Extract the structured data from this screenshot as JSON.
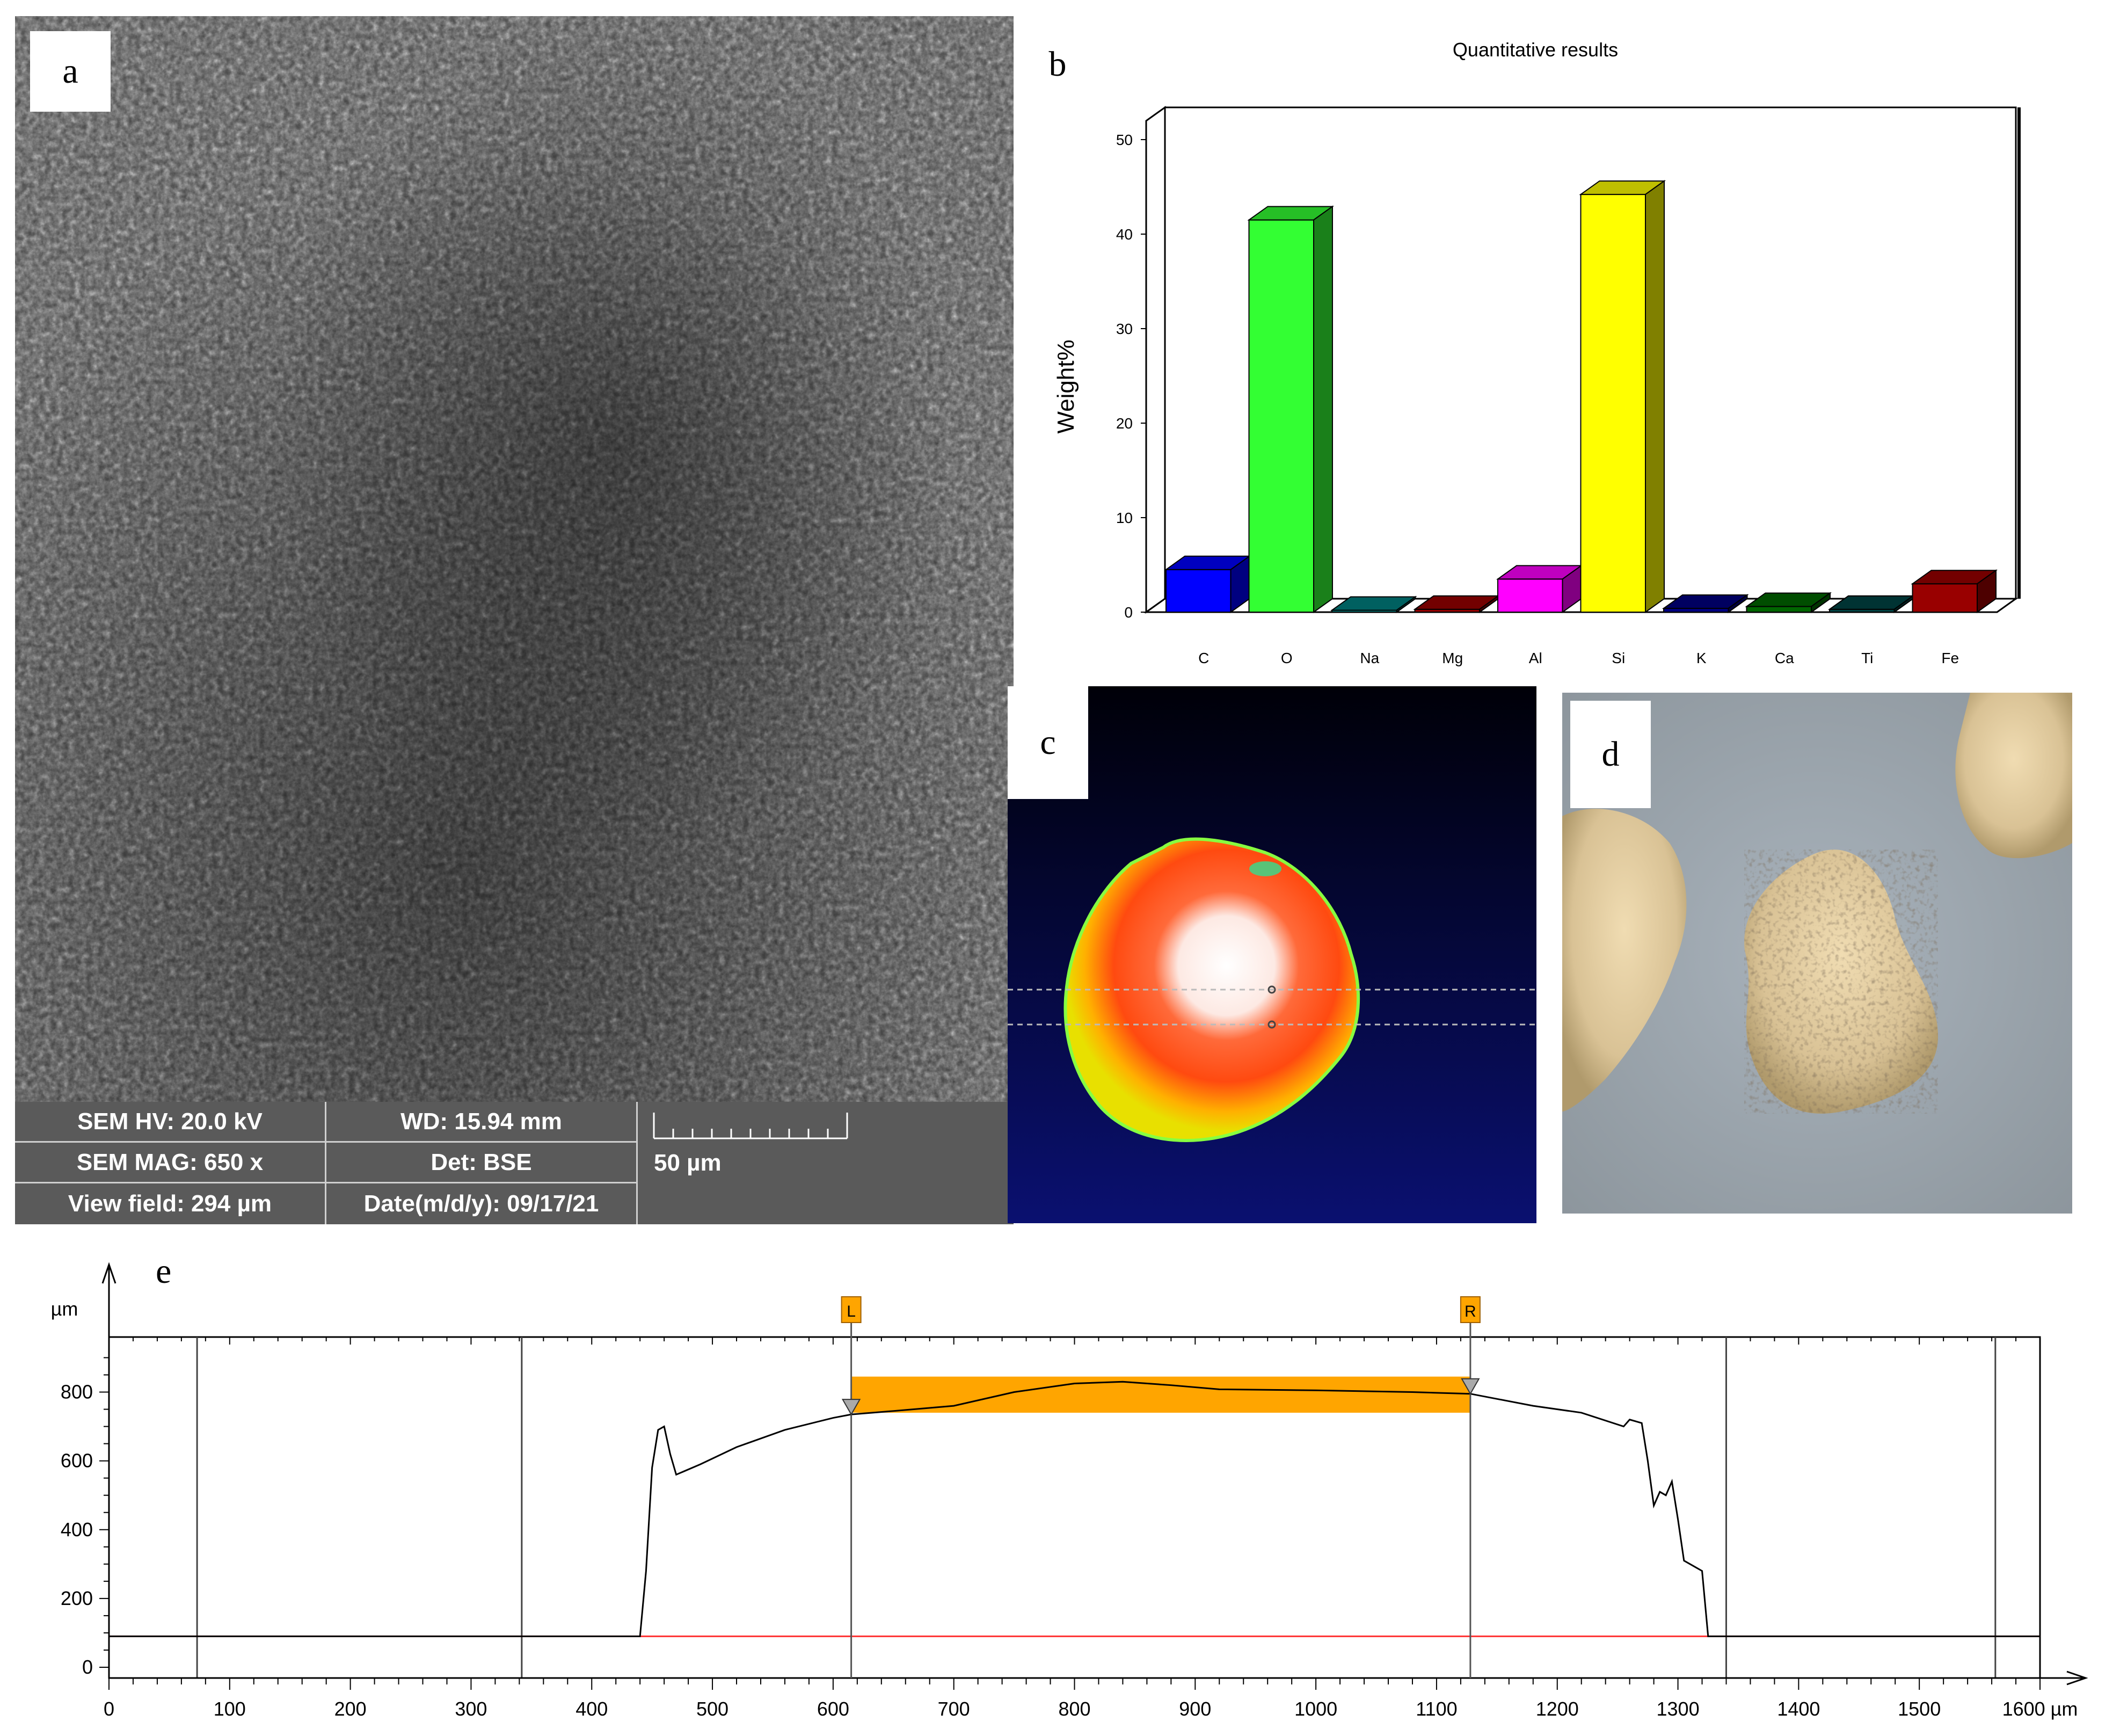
{
  "panels": {
    "a": "a",
    "b": "b",
    "c": "c",
    "d": "d",
    "e": "e"
  },
  "sem_info": {
    "hv": "SEM HV: 20.0 kV",
    "wd": "WD: 15.94 mm",
    "mag": "SEM MAG: 650 x",
    "det": "Det: BSE",
    "scale_label": "50 µm",
    "view_field": "View field: 294 µm",
    "date": "Date(m/d/y): 09/17/21"
  },
  "chart_data": [
    {
      "type": "bar",
      "title": "Quantitative results",
      "xlabel": "",
      "ylabel": "Weight%",
      "categories": [
        "C",
        "O",
        "Na",
        "Mg",
        "Al",
        "Si",
        "K",
        "Ca",
        "Ti",
        "Fe"
      ],
      "values": [
        4.5,
        41.5,
        0.2,
        0.3,
        3.5,
        44.2,
        0.4,
        0.6,
        0.3,
        3.0
      ],
      "colors": [
        "#0000ff",
        "#33ff33",
        "#008080",
        "#990000",
        "#ff00ff",
        "#ffff00",
        "#000080",
        "#006600",
        "#004444",
        "#990000"
      ],
      "ylim": [
        0,
        50
      ],
      "yticks": [
        "0",
        "10",
        "20",
        "30",
        "40",
        "50"
      ]
    },
    {
      "type": "line",
      "title": "",
      "xlabel": "µm",
      "ylabel": "µm",
      "xlim": [
        0,
        1600
      ],
      "ylim": [
        0,
        960
      ],
      "xticks": [
        "0",
        "100",
        "200",
        "300",
        "400",
        "500",
        "600",
        "700",
        "800",
        "900",
        "1000",
        "1100",
        "1200",
        "1300",
        "1400",
        "1500",
        "1600 µm"
      ],
      "yticks": [
        "0",
        "200",
        "400",
        "600",
        "800"
      ],
      "profile": {
        "x": [
          0,
          440,
          445,
          450,
          455,
          460,
          465,
          470,
          490,
          520,
          560,
          600,
          615,
          650,
          700,
          750,
          800,
          840,
          880,
          920,
          1000,
          1080,
          1128,
          1180,
          1220,
          1255,
          1260,
          1270,
          1275,
          1280,
          1285,
          1290,
          1295,
          1300,
          1305,
          1310,
          1320,
          1325,
          1330,
          1600
        ],
        "y": [
          90,
          90,
          280,
          580,
          690,
          700,
          620,
          560,
          590,
          640,
          690,
          725,
          735,
          745,
          760,
          800,
          825,
          830,
          820,
          808,
          805,
          800,
          795,
          760,
          740,
          700,
          720,
          710,
          600,
          470,
          510,
          500,
          540,
          430,
          310,
          300,
          280,
          90,
          90,
          90
        ]
      },
      "baseline": 90,
      "cursor_lines_x": [
        73,
        342,
        1340,
        1563
      ],
      "markers": {
        "L": {
          "label": "L",
          "x": 615
        },
        "R": {
          "label": "R",
          "x": 1128
        }
      },
      "band": {
        "x_start": 615,
        "x_end": 1128,
        "y_low": 740,
        "y_high": 845
      }
    }
  ],
  "colors": {
    "band": "#ffa500",
    "baseline": "#ff3333",
    "marker": "#ffa500"
  }
}
